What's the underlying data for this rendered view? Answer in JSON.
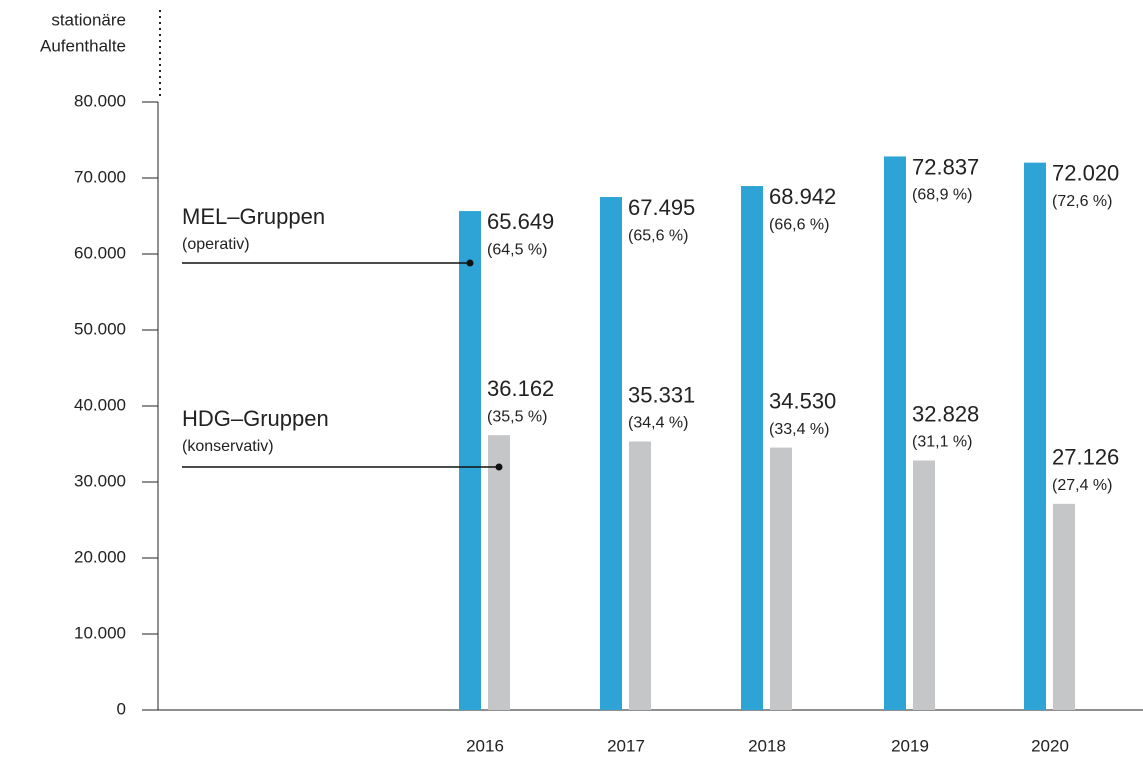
{
  "chart_data": {
    "type": "bar",
    "y_label": [
      "stationäre",
      "Aufenthalte"
    ],
    "categories": [
      "2016",
      "2017",
      "2018",
      "2019",
      "2020"
    ],
    "series": [
      {
        "name": "MEL–Gruppen",
        "description": "(operativ)",
        "color": "#2ea3d5",
        "values": [
          65649,
          67495,
          68942,
          72837,
          72020
        ],
        "value_labels": [
          "65.649",
          "67.495",
          "68.942",
          "72.837",
          "72.020"
        ],
        "share_labels": [
          "(64,5 %)",
          "(65,6 %)",
          "(66,6 %)",
          "(68,9 %)",
          "(72,6 %)"
        ]
      },
      {
        "name": "HDG–Gruppen",
        "description": "(konservativ)",
        "color": "#c4c6c8",
        "values": [
          36162,
          35331,
          34530,
          32828,
          27126
        ],
        "value_labels": [
          "36.162",
          "35.331",
          "34.530",
          "32.828",
          "27.126"
        ],
        "share_labels": [
          "(35,5 %)",
          "(34,4 %)",
          "(33,4 %)",
          "(31,1 %)",
          "(27,4 %)"
        ]
      }
    ],
    "ylim": [
      0,
      80000
    ],
    "yticks": [
      0,
      {
        "value": 10000,
        "label": "10.000"
      },
      {
        "value": 20000,
        "label": "20.000"
      },
      {
        "value": 30000,
        "label": "30.000"
      },
      {
        "value": 40000,
        "label": "40.000"
      },
      {
        "value": 50000,
        "label": "50.000"
      },
      {
        "value": 60000,
        "label": "60.000"
      },
      {
        "value": 70000,
        "label": "70.000"
      },
      {
        "value": 80000,
        "label": "80.000"
      }
    ]
  }
}
